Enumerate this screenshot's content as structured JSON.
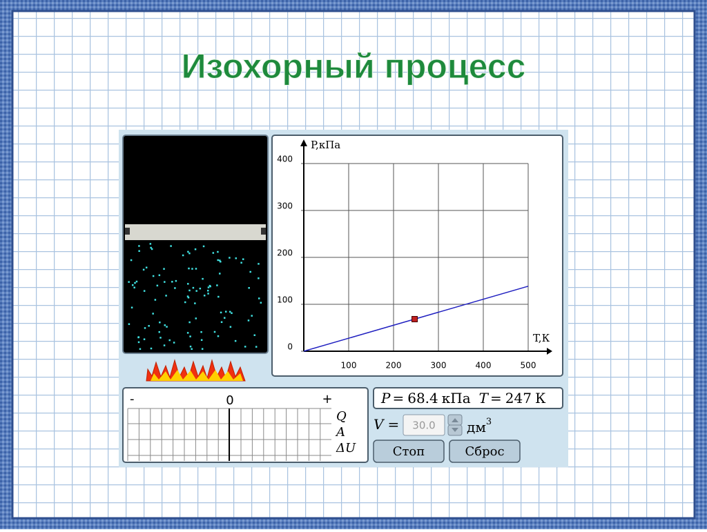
{
  "title": "Изохорный процесс",
  "plot": {
    "y_axis_label": "P,кПа",
    "x_axis_label": "T,К",
    "xlim": [
      0,
      500
    ],
    "ylim": [
      0,
      400
    ],
    "xticks": [
      100,
      200,
      300,
      400,
      500
    ],
    "yticks": [
      0,
      100,
      200,
      300,
      400
    ],
    "line": {
      "x": [
        0,
        500
      ],
      "y": [
        0,
        138.5
      ],
      "color": "#2020c0"
    }
  },
  "readout": {
    "p_label": "P",
    "eq": "=",
    "p_value": 68.4,
    "p_unit": "кПа",
    "t_label": "T",
    "t_value": 247,
    "t_unit": "К"
  },
  "volume": {
    "label": "V",
    "value": "30.0",
    "unit": "дм",
    "unit_power": "3"
  },
  "energy": {
    "minus": "-",
    "zero": "0",
    "plus": "+",
    "rows": [
      "Q",
      "A",
      "ΔU"
    ]
  },
  "buttons": [
    "Стоп",
    "Сброс"
  ]
}
